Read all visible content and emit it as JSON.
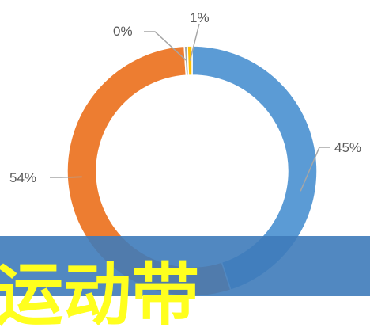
{
  "chart_data": {
    "type": "pie",
    "variant": "doughnut",
    "title": "",
    "slices": [
      {
        "label": "45%",
        "value": 45,
        "color": "#5b9bd5"
      },
      {
        "label": "54%",
        "value": 54,
        "color": "#ed7d31"
      },
      {
        "label": "0%",
        "value": 0.4,
        "color": "#a5a5a5"
      },
      {
        "label": "1%",
        "value": 0.6,
        "color": "#ffc000"
      }
    ],
    "legend": "none"
  },
  "overlay": {
    "banner_color": "#3e7bba",
    "text": "运动带",
    "text_color": "#ffff1e"
  }
}
